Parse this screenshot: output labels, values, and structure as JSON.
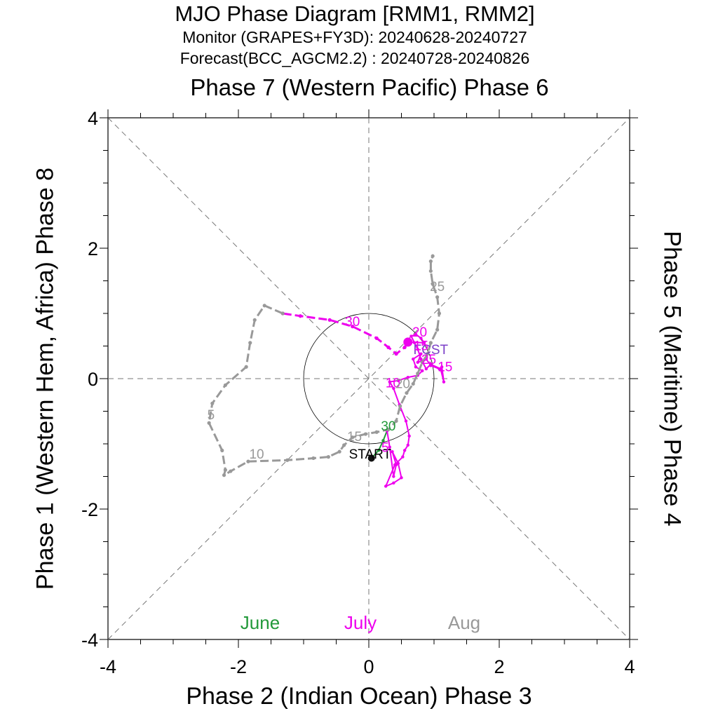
{
  "titles": {
    "main": "MJO Phase Diagram [RMM1, RMM2]",
    "monitor": "Monitor (GRAPES+FY3D): 20240628-20240727",
    "forecast": "Forecast(BCC_AGCM2.2) : 20240728-20240826",
    "top": "Phase 7 (Western Pacific) Phase 6",
    "bottom": "Phase 2 (Indian Ocean) Phase 3",
    "left": "Phase 1 (Western Hem, Africa) Phase 8",
    "right": "Phase 5 (Maritime) Phase 4"
  },
  "chart_data": {
    "type": "line",
    "xlim": [
      -4,
      4
    ],
    "ylim": [
      -4,
      4
    ],
    "xticks": [
      "-4",
      "-2",
      "0",
      "2",
      "4"
    ],
    "yticks": [
      "4",
      "2",
      "0",
      "-2",
      "-4"
    ],
    "unit_circle_radius": 1,
    "month_legend": [
      {
        "label": "June",
        "color": "#22993a"
      },
      {
        "label": "July",
        "color": "#ee00ee"
      },
      {
        "label": "Aug",
        "color": "#999999"
      }
    ],
    "series": [
      {
        "name": "June",
        "color": "#22993a",
        "dashed": false,
        "x": [
          0.04,
          0.15,
          0.22,
          0.28
        ],
        "y": [
          -1.22,
          -1.1,
          -0.95,
          -0.8
        ]
      },
      {
        "name": "July",
        "color": "#ee00ee",
        "dashed": false,
        "x": [
          0.28,
          0.32,
          0.38,
          0.42,
          0.36,
          0.45,
          0.5,
          0.38,
          0.26,
          0.4,
          0.52,
          0.55,
          0.6,
          0.62,
          0.57,
          0.47,
          0.38,
          0.32,
          0.45,
          0.6,
          0.75,
          0.82,
          0.72,
          0.68,
          0.8,
          0.75,
          0.88,
          0.95,
          1.08,
          1.12,
          1.15,
          1.1,
          0.95,
          0.88,
          0.8,
          0.75,
          0.7,
          0.65,
          0.72,
          0.8,
          0.85,
          0.6
        ],
        "y": [
          -0.8,
          -1.05,
          -1.5,
          -1.32,
          -1.12,
          -1.3,
          -1.52,
          -1.6,
          -1.65,
          -1.32,
          -1.2,
          -1.1,
          -1.02,
          -0.88,
          -0.65,
          -0.4,
          -0.15,
          -0.05,
          -0.03,
          0.02,
          0.05,
          0.12,
          0.18,
          0.3,
          0.38,
          0.25,
          0.3,
          0.2,
          0.15,
          0.18,
          -0.05,
          0.15,
          0.22,
          0.15,
          0.3,
          0.45,
          0.55,
          0.65,
          0.68,
          0.62,
          0.55,
          0.56
        ]
      },
      {
        "name": "Forecast",
        "color": "#ee00ee",
        "dashed": true,
        "x": [
          0.6,
          0.55,
          0.42,
          0.3,
          0.12,
          -0.25,
          -0.6,
          -1.05,
          -1.32
        ],
        "y": [
          0.56,
          0.48,
          0.38,
          0.48,
          0.62,
          0.8,
          0.9,
          0.96,
          1.0
        ]
      },
      {
        "name": "Aug",
        "color": "#999999",
        "dashed": true,
        "x": [
          -1.32,
          -1.6,
          -1.75,
          -1.82,
          -1.88,
          -2.2,
          -2.4,
          -2.45,
          -2.25,
          -2.2,
          -2.22,
          -2.12,
          -1.85,
          -1.25,
          -0.85,
          -0.62,
          -0.45,
          -0.38,
          -0.25,
          -0.05,
          0.12,
          0.3,
          0.42,
          0.48,
          0.58,
          0.68,
          0.75,
          0.82,
          0.9,
          0.95,
          1.05,
          1.08,
          1.05,
          0.98,
          0.95,
          0.95,
          0.98
        ],
        "y": [
          1.0,
          1.12,
          0.9,
          0.55,
          0.18,
          -0.1,
          -0.38,
          -0.68,
          -1.1,
          -1.4,
          -1.48,
          -1.42,
          -1.27,
          -1.25,
          -1.22,
          -1.2,
          -1.12,
          -1.02,
          -0.9,
          -0.85,
          -0.82,
          -0.78,
          -0.65,
          -0.42,
          -0.22,
          -0.08,
          0.08,
          0.25,
          0.38,
          0.55,
          0.75,
          1.0,
          1.25,
          1.45,
          1.65,
          1.8,
          1.88
        ]
      }
    ],
    "annotations": [
      {
        "text": "START",
        "x": 0.02,
        "y": -1.15,
        "color": "#000000"
      },
      {
        "text": "FCST",
        "x": 0.95,
        "y": 0.45,
        "color": "#7c3fc8"
      },
      {
        "text": "30",
        "x": 0.3,
        "y": -0.72,
        "color": "#22993a"
      },
      {
        "text": "5",
        "x": 0.25,
        "y": -1.05,
        "color": "#ee00ee"
      },
      {
        "text": "10",
        "x": 0.37,
        "y": -0.06,
        "color": "#ee00ee"
      },
      {
        "text": "15",
        "x": 1.17,
        "y": 0.19,
        "color": "#ee00ee"
      },
      {
        "text": "15",
        "x": 0.8,
        "y": 0.51,
        "color": "#ee00ee"
      },
      {
        "text": "20",
        "x": 0.78,
        "y": 0.72,
        "color": "#ee00ee"
      },
      {
        "text": "25",
        "x": 0.92,
        "y": 0.3,
        "color": "#ee00ee"
      },
      {
        "text": "30",
        "x": -0.25,
        "y": 0.88,
        "color": "#ee00ee"
      },
      {
        "text": "5",
        "x": -2.42,
        "y": -0.55,
        "color": "#999999"
      },
      {
        "text": "10",
        "x": -1.72,
        "y": -1.15,
        "color": "#999999"
      },
      {
        "text": "15",
        "x": -0.22,
        "y": -0.88,
        "color": "#999999"
      },
      {
        "text": "20",
        "x": 0.52,
        "y": -0.07,
        "color": "#999999"
      },
      {
        "text": "25",
        "x": 1.05,
        "y": 1.42,
        "color": "#999999"
      }
    ]
  }
}
